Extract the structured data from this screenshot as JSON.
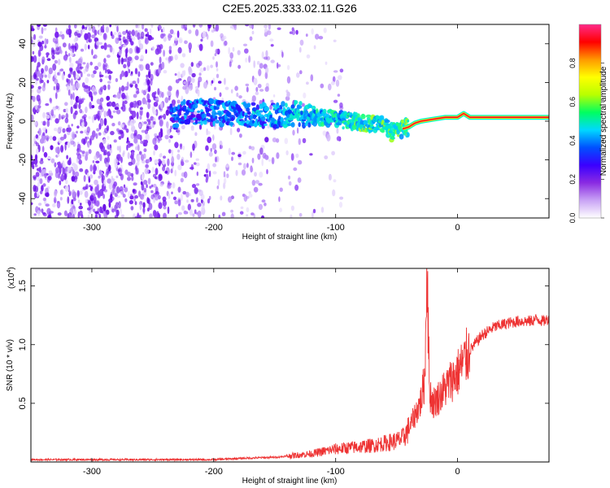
{
  "chart_data": [
    {
      "type": "heatmap",
      "title": "C2E5.2025.333.02.11.G26",
      "xlabel": "Height of straight line (km)",
      "ylabel": "Frequency (Hz)",
      "xlim": [
        -350,
        75
      ],
      "ylim": [
        -50,
        50
      ],
      "x_ticks": [
        -300,
        -200,
        -100,
        0
      ],
      "y_ticks": [
        -40,
        -20,
        0,
        20,
        40
      ],
      "colorbar": {
        "label": "Normalized spectral amplitude",
        "range": [
          0,
          1
        ],
        "ticks": [
          "0.0",
          "0.2",
          "0.4",
          "0.6",
          "0.8"
        ],
        "colors": [
          "#ffffff",
          "#c9a3f5",
          "#8a2be2",
          "#3a00ff",
          "#0050ff",
          "#00d8ff",
          "#00ff60",
          "#b8ff00",
          "#ffff00",
          "#ff9900",
          "#ff0000",
          "#ff2a8a"
        ]
      },
      "signal_track": [
        {
          "x": -230,
          "y": 4
        },
        {
          "x": -210,
          "y": 5
        },
        {
          "x": -190,
          "y": 4
        },
        {
          "x": -170,
          "y": 3
        },
        {
          "x": -150,
          "y": 3
        },
        {
          "x": -130,
          "y": 4
        },
        {
          "x": -110,
          "y": 2
        },
        {
          "x": -90,
          "y": 0
        },
        {
          "x": -70,
          "y": -1
        },
        {
          "x": -60,
          "y": -2
        },
        {
          "x": -55,
          "y": -6
        },
        {
          "x": -45,
          "y": -4
        },
        {
          "x": -40,
          "y": -3
        },
        {
          "x": -35,
          "y": -1
        },
        {
          "x": -30,
          "y": 0
        },
        {
          "x": -20,
          "y": 1
        },
        {
          "x": -10,
          "y": 2
        },
        {
          "x": 0,
          "y": 2
        },
        {
          "x": 5,
          "y": 4
        },
        {
          "x": 10,
          "y": 2
        },
        {
          "x": 40,
          "y": 2
        },
        {
          "x": 75,
          "y": 2
        }
      ]
    },
    {
      "type": "line",
      "xlabel": "Height of straight line (km)",
      "ylabel": "SNR (10 * v/v)",
      "y_multiplier": "(x10",
      "y_multiplier_exp": "4",
      "y_multiplier_close": ")",
      "xlim": [
        -350,
        75
      ],
      "ylim": [
        0,
        1.65
      ],
      "x_ticks": [
        -300,
        -200,
        -100,
        0
      ],
      "y_ticks": [
        "0.5",
        "1.0",
        "1.5"
      ],
      "line_color": "#ee3333",
      "series": [
        {
          "x": [
            -350,
            -300,
            -250,
            -200,
            -180,
            -150,
            -140,
            -130,
            -120,
            -110,
            -100,
            -90,
            -80,
            -70,
            -60,
            -50,
            -45,
            -40,
            -35,
            -30,
            -27,
            -25,
            -23,
            -20,
            -15,
            -10,
            -5,
            0,
            5,
            10,
            20,
            30,
            40,
            50,
            60,
            65,
            70,
            75
          ],
          "y": [
            0.02,
            0.02,
            0.02,
            0.02,
            0.03,
            0.04,
            0.05,
            0.06,
            0.07,
            0.09,
            0.11,
            0.12,
            0.13,
            0.14,
            0.16,
            0.18,
            0.2,
            0.28,
            0.4,
            0.52,
            0.7,
            1.6,
            0.6,
            0.5,
            0.56,
            0.63,
            0.7,
            0.76,
            0.85,
            0.95,
            1.08,
            1.15,
            1.18,
            1.2,
            1.2,
            1.22,
            1.2,
            1.22
          ]
        }
      ]
    }
  ]
}
